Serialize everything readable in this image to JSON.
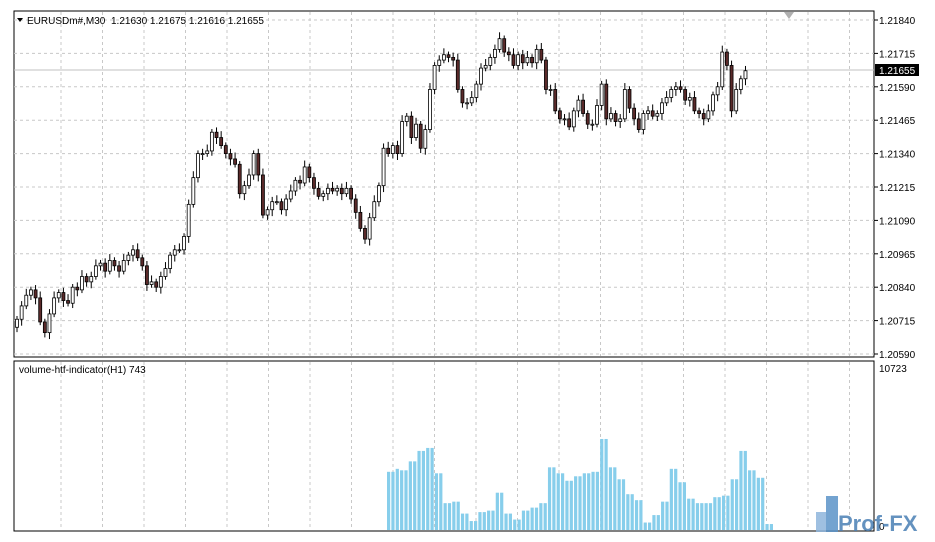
{
  "chart_data": [
    {
      "type": "candlestick",
      "symbol": "EURUSDm#,M30",
      "ohlc_header": "1.21630 1.21675 1.21616 1.21655",
      "current_price": "1.21655",
      "y_ticks": [
        "1.21840",
        "1.21715",
        "1.21590",
        "1.21465",
        "1.21340",
        "1.21215",
        "1.21090",
        "1.20965",
        "1.20840",
        "1.20715",
        "1.20590"
      ],
      "ylim": [
        1.2059,
        1.2184
      ],
      "candles_approx_close": [
        1.2072,
        1.2077,
        1.2081,
        1.2083,
        1.208,
        1.2071,
        1.2067,
        1.2074,
        1.208,
        1.2082,
        1.2079,
        1.2078,
        1.2084,
        1.2083,
        1.2088,
        1.2086,
        1.2088,
        1.2092,
        1.2093,
        1.209,
        1.2094,
        1.2092,
        1.209,
        1.2094,
        1.2096,
        1.2098,
        1.2095,
        1.2092,
        1.2085,
        1.2086,
        1.2084,
        1.2088,
        1.2091,
        1.2096,
        1.2098,
        1.2098,
        1.2103,
        1.2115,
        1.2125,
        1.2134,
        1.2134,
        1.2135,
        1.2142,
        1.214,
        1.2137,
        1.2134,
        1.2132,
        1.213,
        1.2119,
        1.2122,
        1.2126,
        1.2134,
        1.2126,
        1.2111,
        1.2113,
        1.2116,
        1.2116,
        1.2113,
        1.2117,
        1.212,
        1.2124,
        1.2123,
        1.2129,
        1.2125,
        1.2121,
        1.2118,
        1.2119,
        1.2121,
        1.212,
        1.2121,
        1.2119,
        1.2121,
        1.2117,
        1.2112,
        1.2106,
        1.2102,
        1.211,
        1.2116,
        1.2122,
        1.2136,
        1.2134,
        1.2137,
        1.2134,
        1.2146,
        1.2148,
        1.214,
        1.2145,
        1.2136,
        1.2143,
        1.2158,
        1.2167,
        1.2169,
        1.2171,
        1.217,
        1.2169,
        1.2158,
        1.2153,
        1.2153,
        1.2155,
        1.216,
        1.2166,
        1.2167,
        1.217,
        1.2173,
        1.2177,
        1.2172,
        1.2171,
        1.2167,
        1.2171,
        1.2168,
        1.217,
        1.2168,
        1.2173,
        1.2169,
        1.2158,
        1.2158,
        1.215,
        1.2147,
        1.2147,
        1.2144,
        1.215,
        1.2154,
        1.2149,
        1.2145,
        1.2145,
        1.2152,
        1.216,
        1.2147,
        1.2149,
        1.2146,
        1.2147,
        1.2158,
        1.2151,
        1.2147,
        1.2143,
        1.2149,
        1.215,
        1.2148,
        1.2149,
        1.2153,
        1.2155,
        1.2158,
        1.2159,
        1.2158,
        1.2154,
        1.2155,
        1.215,
        1.2149,
        1.2147,
        1.215,
        1.2156,
        1.2159,
        1.2172,
        1.2167,
        1.215,
        1.2158,
        1.2162,
        1.2165
      ]
    },
    {
      "type": "bar",
      "indicator_label": "volume-htf-indicator(H1) 743",
      "max_label": "10723",
      "zero_label": "0",
      "ylim": [
        0,
        10723
      ],
      "values": [
        3900,
        3900,
        4100,
        4000,
        4000,
        4600,
        4600,
        5300,
        5300,
        5500,
        5500,
        3800,
        3800,
        1800,
        1800,
        1900,
        1900,
        1100,
        1100,
        600,
        600,
        1200,
        1200,
        1300,
        1300,
        2500,
        2500,
        1100,
        1100,
        700,
        700,
        1300,
        1300,
        1500,
        1500,
        1800,
        1800,
        4200,
        4200,
        3800,
        3800,
        3300,
        3300,
        3600,
        3600,
        3800,
        3800,
        3900,
        3900,
        6100,
        6100,
        4200,
        4200,
        3400,
        3400,
        2400,
        2400,
        2000,
        2000,
        500,
        500,
        1000,
        1000,
        1900,
        1900,
        4100,
        4100,
        3200,
        3200,
        2100,
        2100,
        1800,
        1800,
        1800,
        1800,
        2200,
        2200,
        2300,
        2300,
        3400,
        3400,
        5300,
        5300,
        4000,
        4000,
        3500,
        3500,
        400,
        400
      ]
    }
  ],
  "watermark": "Prof-FX"
}
